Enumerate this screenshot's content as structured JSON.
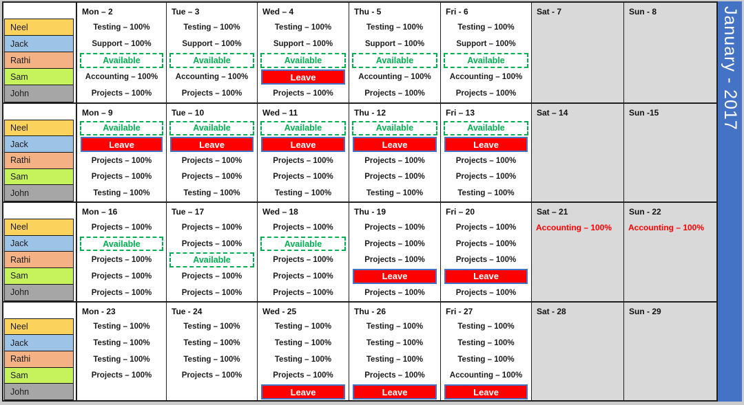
{
  "title": "January - 2017",
  "colors": {
    "accent_blue": "#4472C4",
    "available_green": "#00B050",
    "leave_red": "#FF0000",
    "weekend_gray": "#D9D9D9"
  },
  "people": [
    {
      "name": "Neel",
      "color": "#FBD25B"
    },
    {
      "name": "Jack",
      "color": "#9DC3E6"
    },
    {
      "name": "Rathi",
      "color": "#F4B183"
    },
    {
      "name": "Sam",
      "color": "#C6F35C"
    },
    {
      "name": "John",
      "color": "#A6A6A6"
    }
  ],
  "weeks": [
    {
      "days": [
        {
          "label": "Mon – 2",
          "weekend": false,
          "entries": [
            {
              "type": "task",
              "text": "Testing – 100%"
            },
            {
              "type": "task",
              "text": "Support – 100%"
            },
            {
              "type": "available",
              "text": "Available"
            },
            {
              "type": "task",
              "text": "Accounting – 100%"
            },
            {
              "type": "task",
              "text": "Projects – 100%"
            }
          ]
        },
        {
          "label": "Tue – 3",
          "weekend": false,
          "entries": [
            {
              "type": "task",
              "text": "Testing – 100%"
            },
            {
              "type": "task",
              "text": "Support – 100%"
            },
            {
              "type": "available",
              "text": "Available"
            },
            {
              "type": "task",
              "text": "Accounting – 100%"
            },
            {
              "type": "task",
              "text": "Projects – 100%"
            }
          ]
        },
        {
          "label": "Wed – 4",
          "weekend": false,
          "entries": [
            {
              "type": "task",
              "text": "Testing – 100%"
            },
            {
              "type": "task",
              "text": "Support – 100%"
            },
            {
              "type": "available",
              "text": "Available"
            },
            {
              "type": "leave",
              "text": "Leave"
            },
            {
              "type": "task",
              "text": "Projects – 100%"
            }
          ]
        },
        {
          "label": "Thu - 5",
          "weekend": false,
          "entries": [
            {
              "type": "task",
              "text": "Testing – 100%"
            },
            {
              "type": "task",
              "text": "Support – 100%"
            },
            {
              "type": "available",
              "text": "Available"
            },
            {
              "type": "task",
              "text": "Accounting – 100%"
            },
            {
              "type": "task",
              "text": "Projects – 100%"
            }
          ]
        },
        {
          "label": "Fri - 6",
          "weekend": false,
          "entries": [
            {
              "type": "task",
              "text": "Testing – 100%"
            },
            {
              "type": "task",
              "text": "Support – 100%"
            },
            {
              "type": "available",
              "text": "Available"
            },
            {
              "type": "task",
              "text": "Accounting – 100%"
            },
            {
              "type": "task",
              "text": "Projects – 100%"
            }
          ]
        },
        {
          "label": "Sat - 7",
          "weekend": true,
          "entries": [
            {
              "type": "empty",
              "text": ""
            },
            {
              "type": "empty",
              "text": ""
            },
            {
              "type": "empty",
              "text": ""
            },
            {
              "type": "empty",
              "text": ""
            },
            {
              "type": "empty",
              "text": ""
            }
          ]
        },
        {
          "label": "Sun - 8",
          "weekend": true,
          "entries": [
            {
              "type": "empty",
              "text": ""
            },
            {
              "type": "empty",
              "text": ""
            },
            {
              "type": "empty",
              "text": ""
            },
            {
              "type": "empty",
              "text": ""
            },
            {
              "type": "empty",
              "text": ""
            }
          ]
        }
      ]
    },
    {
      "days": [
        {
          "label": "Mon – 9",
          "weekend": false,
          "entries": [
            {
              "type": "available",
              "text": "Available"
            },
            {
              "type": "leave",
              "text": "Leave"
            },
            {
              "type": "task",
              "text": "Projects – 100%"
            },
            {
              "type": "task",
              "text": "Projects – 100%"
            },
            {
              "type": "task",
              "text": "Testing – 100%"
            }
          ]
        },
        {
          "label": "Tue – 10",
          "weekend": false,
          "entries": [
            {
              "type": "available",
              "text": "Available"
            },
            {
              "type": "leave",
              "text": "Leave"
            },
            {
              "type": "task",
              "text": "Projects – 100%"
            },
            {
              "type": "task",
              "text": "Projects – 100%"
            },
            {
              "type": "task",
              "text": "Testing – 100%"
            }
          ]
        },
        {
          "label": "Wed – 11",
          "weekend": false,
          "entries": [
            {
              "type": "available",
              "text": "Available"
            },
            {
              "type": "leave",
              "text": "Leave"
            },
            {
              "type": "task",
              "text": "Projects – 100%"
            },
            {
              "type": "task",
              "text": "Projects – 100%"
            },
            {
              "type": "task",
              "text": "Testing – 100%"
            }
          ]
        },
        {
          "label": "Thu - 12",
          "weekend": false,
          "entries": [
            {
              "type": "available",
              "text": "Available"
            },
            {
              "type": "leave",
              "text": "Leave"
            },
            {
              "type": "task",
              "text": "Projects – 100%"
            },
            {
              "type": "task",
              "text": "Projects – 100%"
            },
            {
              "type": "task",
              "text": "Testing – 100%"
            }
          ]
        },
        {
          "label": "Fri – 13",
          "weekend": false,
          "entries": [
            {
              "type": "available",
              "text": "Available"
            },
            {
              "type": "leave",
              "text": "Leave"
            },
            {
              "type": "task",
              "text": "Projects – 100%"
            },
            {
              "type": "task",
              "text": "Projects – 100%"
            },
            {
              "type": "task",
              "text": "Testing – 100%"
            }
          ]
        },
        {
          "label": "Sat – 14",
          "weekend": true,
          "entries": [
            {
              "type": "empty",
              "text": ""
            },
            {
              "type": "empty",
              "text": ""
            },
            {
              "type": "empty",
              "text": ""
            },
            {
              "type": "empty",
              "text": ""
            },
            {
              "type": "empty",
              "text": ""
            }
          ]
        },
        {
          "label": "Sun -15",
          "weekend": true,
          "entries": [
            {
              "type": "empty",
              "text": ""
            },
            {
              "type": "empty",
              "text": ""
            },
            {
              "type": "empty",
              "text": ""
            },
            {
              "type": "empty",
              "text": ""
            },
            {
              "type": "empty",
              "text": ""
            }
          ]
        }
      ]
    },
    {
      "days": [
        {
          "label": "Mon – 16",
          "weekend": false,
          "entries": [
            {
              "type": "task",
              "text": "Projects – 100%"
            },
            {
              "type": "available",
              "text": "Available"
            },
            {
              "type": "task",
              "text": "Projects – 100%"
            },
            {
              "type": "task",
              "text": "Projects – 100%"
            },
            {
              "type": "task",
              "text": "Projects – 100%"
            }
          ]
        },
        {
          "label": "Tue – 17",
          "weekend": false,
          "entries": [
            {
              "type": "task",
              "text": "Projects – 100%"
            },
            {
              "type": "task",
              "text": "Projects – 100%"
            },
            {
              "type": "available",
              "text": "Available"
            },
            {
              "type": "task",
              "text": "Projects – 100%"
            },
            {
              "type": "task",
              "text": "Projects – 100%"
            }
          ]
        },
        {
          "label": "Wed – 18",
          "weekend": false,
          "entries": [
            {
              "type": "task",
              "text": "Projects – 100%"
            },
            {
              "type": "available",
              "text": "Available"
            },
            {
              "type": "task",
              "text": "Projects – 100%"
            },
            {
              "type": "task",
              "text": "Projects – 100%"
            },
            {
              "type": "task",
              "text": "Projects – 100%"
            }
          ]
        },
        {
          "label": "Thu - 19",
          "weekend": false,
          "entries": [
            {
              "type": "task",
              "text": "Projects – 100%"
            },
            {
              "type": "task",
              "text": "Projects – 100%"
            },
            {
              "type": "task",
              "text": "Projects – 100%"
            },
            {
              "type": "leave",
              "text": "Leave"
            },
            {
              "type": "task",
              "text": "Projects – 100%"
            }
          ]
        },
        {
          "label": "Fri – 20",
          "weekend": false,
          "entries": [
            {
              "type": "task",
              "text": "Projects – 100%"
            },
            {
              "type": "task",
              "text": "Projects – 100%"
            },
            {
              "type": "task",
              "text": "Projects – 100%"
            },
            {
              "type": "leave",
              "text": "Leave"
            },
            {
              "type": "task",
              "text": "Projects – 100%"
            }
          ]
        },
        {
          "label": "Sat – 21",
          "weekend": true,
          "entries": [
            {
              "type": "task-red",
              "text": "Accounting – 100%"
            },
            {
              "type": "empty",
              "text": ""
            },
            {
              "type": "empty",
              "text": ""
            },
            {
              "type": "empty",
              "text": ""
            },
            {
              "type": "empty",
              "text": ""
            }
          ]
        },
        {
          "label": "Sun - 22",
          "weekend": true,
          "entries": [
            {
              "type": "task-red",
              "text": "Accounting – 100%"
            },
            {
              "type": "empty",
              "text": ""
            },
            {
              "type": "empty",
              "text": ""
            },
            {
              "type": "empty",
              "text": ""
            },
            {
              "type": "empty",
              "text": ""
            }
          ]
        }
      ]
    },
    {
      "days": [
        {
          "label": "Mon - 23",
          "weekend": false,
          "entries": [
            {
              "type": "task",
              "text": "Testing – 100%"
            },
            {
              "type": "task",
              "text": "Testing – 100%"
            },
            {
              "type": "task",
              "text": "Testing – 100%"
            },
            {
              "type": "task",
              "text": "Projects – 100%"
            },
            {
              "type": "empty",
              "text": ""
            }
          ]
        },
        {
          "label": "Tue - 24",
          "weekend": false,
          "entries": [
            {
              "type": "task",
              "text": "Testing – 100%"
            },
            {
              "type": "task",
              "text": "Testing – 100%"
            },
            {
              "type": "task",
              "text": "Testing – 100%"
            },
            {
              "type": "task",
              "text": "Projects – 100%"
            },
            {
              "type": "empty",
              "text": ""
            }
          ]
        },
        {
          "label": "Wed - 25",
          "weekend": false,
          "entries": [
            {
              "type": "task",
              "text": "Testing – 100%"
            },
            {
              "type": "task",
              "text": "Testing – 100%"
            },
            {
              "type": "task",
              "text": "Testing – 100%"
            },
            {
              "type": "task",
              "text": "Projects – 100%"
            },
            {
              "type": "leave",
              "text": "Leave"
            }
          ]
        },
        {
          "label": "Thu - 26",
          "weekend": false,
          "entries": [
            {
              "type": "task",
              "text": "Testing – 100%"
            },
            {
              "type": "task",
              "text": "Testing – 100%"
            },
            {
              "type": "task",
              "text": "Testing – 100%"
            },
            {
              "type": "task",
              "text": "Projects – 100%"
            },
            {
              "type": "leave",
              "text": "Leave"
            }
          ]
        },
        {
          "label": "Fri - 27",
          "weekend": false,
          "entries": [
            {
              "type": "task",
              "text": "Testing – 100%"
            },
            {
              "type": "task",
              "text": "Testing – 100%"
            },
            {
              "type": "task",
              "text": "Testing – 100%"
            },
            {
              "type": "task",
              "text": "Accounting – 100%"
            },
            {
              "type": "leave",
              "text": "Leave"
            }
          ]
        },
        {
          "label": "Sat - 28",
          "weekend": true,
          "entries": [
            {
              "type": "empty",
              "text": ""
            },
            {
              "type": "empty",
              "text": ""
            },
            {
              "type": "empty",
              "text": ""
            },
            {
              "type": "empty",
              "text": ""
            },
            {
              "type": "empty",
              "text": ""
            }
          ]
        },
        {
          "label": "Sun - 29",
          "weekend": true,
          "entries": [
            {
              "type": "empty",
              "text": ""
            },
            {
              "type": "empty",
              "text": ""
            },
            {
              "type": "empty",
              "text": ""
            },
            {
              "type": "empty",
              "text": ""
            },
            {
              "type": "empty",
              "text": ""
            }
          ]
        }
      ]
    }
  ]
}
